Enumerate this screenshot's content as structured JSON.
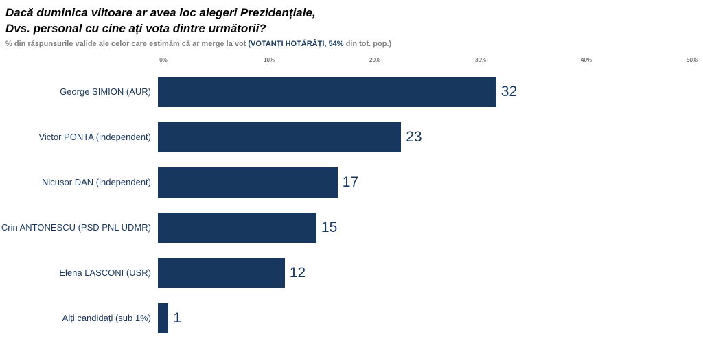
{
  "title_line1": "Dacă duminica viitoare ar avea loc alegeri Prezidențiale,",
  "title_line2": "Dvs. personal cu cine ați vota dintre următorii?",
  "subtitle_prefix": "% din răspunsurile valide ale celor care estimăm că ar merge la vot ",
  "subtitle_highlight": "(VOTANȚI HOTĂRÂȚI, 54%",
  "subtitle_suffix": " din tot. pop.)",
  "colors": {
    "bar": "#17375E",
    "title": "#000000",
    "subtitle": "#7f7f7f"
  },
  "chart_data": {
    "type": "bar",
    "orientation": "horizontal",
    "title": "Dacă duminica viitoare ar avea loc alegeri Prezidențiale, Dvs. personal cu cine ați vota dintre următorii?",
    "subtitle": "% din răspunsurile valide ale celor care estimăm că ar merge la vot (VOTANȚI HOTĂRÂȚI, 54% din tot. pop.)",
    "categories": [
      "George SIMION (AUR)",
      "Victor PONTA (independent)",
      "Nicușor DAN (independent)",
      "Crin ANTONESCU (PSD PNL UDMR)",
      "Elena LASCONI (USR)",
      "Alți candidați (sub 1%)"
    ],
    "values": [
      32,
      23,
      17,
      15,
      12,
      1
    ],
    "value_labels": [
      "32",
      "23",
      "17",
      "15",
      "12",
      "1"
    ],
    "xlim": [
      0,
      50
    ],
    "x_ticks": [
      "0%",
      "10%",
      "20%",
      "30%",
      "40%",
      "50%"
    ],
    "x_tick_values": [
      0,
      10,
      20,
      30,
      40,
      50
    ],
    "xlabel": "",
    "ylabel": "",
    "grid": false,
    "legend": false,
    "bar_color": "#17375E"
  }
}
